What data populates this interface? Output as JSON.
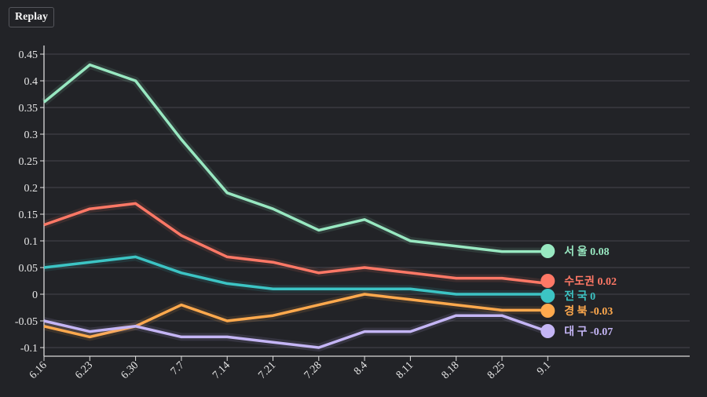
{
  "replay_label": "Replay",
  "chart_data": {
    "type": "line",
    "title": "",
    "xlabel": "",
    "ylabel": "",
    "x": [
      "6.16",
      "6.23",
      "6.30",
      "7.7",
      "7.14",
      "7.21",
      "7.28",
      "8.4",
      "8.11",
      "8.18",
      "8.25",
      "9.1"
    ],
    "ylim": [
      -0.115,
      0.465
    ],
    "yticks": [
      0.45,
      0.4,
      0.35,
      0.3,
      0.25,
      0.2,
      0.15,
      0.1,
      0.05,
      0,
      -0.05,
      -0.1
    ],
    "ytick_labels": [
      "0.45",
      "0.4",
      "0.35",
      "0.3",
      "0.25",
      "0.2",
      "0.15",
      "0.1",
      "0.05",
      "0",
      "-0.05",
      "-0.1"
    ],
    "grid": true,
    "series": [
      {
        "name": "서 울",
        "end_label": "0.08",
        "color": "#98e8c1",
        "values": [
          0.36,
          0.43,
          0.4,
          0.29,
          0.19,
          0.16,
          0.12,
          0.14,
          0.1,
          0.09,
          0.08,
          0.08
        ]
      },
      {
        "name": "수도권",
        "end_label": "0.02",
        "color": "#ff7866",
        "values": [
          0.13,
          0.16,
          0.17,
          0.11,
          0.07,
          0.06,
          0.04,
          0.05,
          0.04,
          0.03,
          0.03,
          0.02
        ]
      },
      {
        "name": "전 국",
        "end_label": "0",
        "color": "#3cc4c4",
        "values": [
          0.05,
          0.06,
          0.07,
          0.04,
          0.02,
          0.01,
          0.01,
          0.01,
          0.01,
          0,
          0,
          0
        ]
      },
      {
        "name": "경 북",
        "end_label": "-0.03",
        "color": "#ffa94d",
        "values": [
          -0.06,
          -0.08,
          -0.06,
          -0.02,
          -0.05,
          -0.04,
          -0.02,
          0,
          -0.01,
          -0.02,
          -0.03,
          -0.03
        ]
      },
      {
        "name": "대 구",
        "end_label": "-0.07",
        "color": "#c4b5f5",
        "values": [
          -0.05,
          -0.07,
          -0.06,
          -0.08,
          -0.08,
          -0.09,
          -0.1,
          -0.07,
          -0.07,
          -0.04,
          -0.04,
          -0.07
        ]
      }
    ]
  }
}
